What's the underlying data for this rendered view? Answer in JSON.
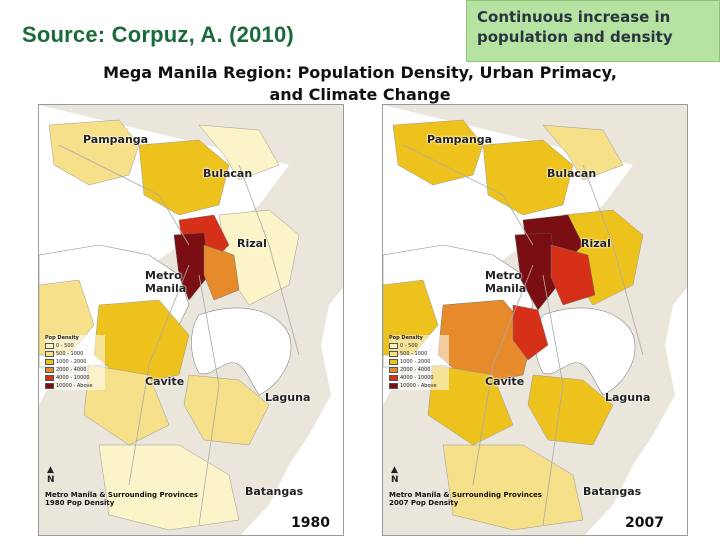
{
  "header": {
    "source": "Source: Corpuz, A. (2010)",
    "callout": "Continuous increase in population and density",
    "title": "Mega Manila Region: Population Density, Urban Primacy,\nand Climate Change"
  },
  "colors": {
    "callout_bg": "#b7e3a2",
    "source_text": "#1a6a3a",
    "water": "#ffffff",
    "land_base": "#e8e8e8",
    "density_0": "#fbf4c8",
    "density_1": "#f7e08a",
    "density_2": "#eec21c",
    "density_3": "#e68a2c",
    "density_4": "#d73018",
    "density_5": "#7a0e12"
  },
  "maps": [
    {
      "year": "1980",
      "caption_line1": "Metro Manila & Surrounding Provinces",
      "caption_line2": "1980 Pop Density",
      "labels": {
        "pampanga": "Pampanga",
        "bulacan": "Bulacan",
        "rizal": "Rizal",
        "metro_manila": "Metro\nManila",
        "cavite": "Cavite",
        "laguna": "Laguna",
        "batangas": "Batangas"
      }
    },
    {
      "year": "2007",
      "caption_line1": "Metro Manila & Surrounding Provinces",
      "caption_line2": "2007 Pop Density",
      "labels": {
        "pampanga": "Pampanga",
        "bulacan": "Bulacan",
        "rizal": "Rizal",
        "metro_manila": "Metro\nManila",
        "cavite": "Cavite",
        "laguna": "Laguna",
        "batangas": "Batangas"
      }
    }
  ],
  "legend": {
    "title": "Pop Density",
    "items": [
      "0 - 500",
      "500 - 1000",
      "1000 - 2000",
      "2000 - 4000",
      "4000 - 10000",
      "10000 - Above"
    ]
  },
  "icons": [
    "north-arrow-icon"
  ]
}
